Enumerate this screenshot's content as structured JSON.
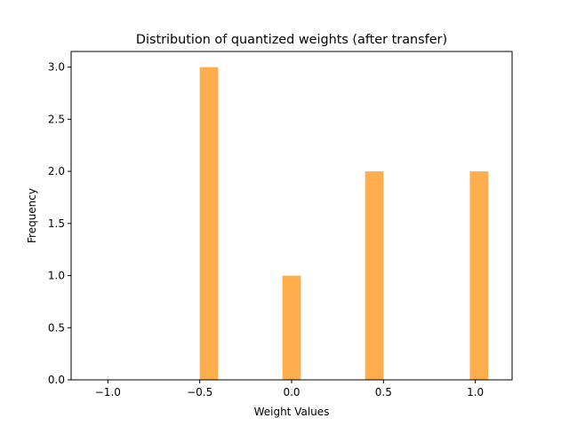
{
  "chart_data": {
    "type": "bar",
    "title": "Distribution of quantized weights (after transfer)",
    "xlabel": "Weight Values",
    "ylabel": "Frequency",
    "xlim": [
      -1.2,
      1.2
    ],
    "ylim": [
      0,
      3.15
    ],
    "bar_width": 0.1,
    "bar_color": "#FFAD4D",
    "bars": [
      {
        "x": -0.45,
        "value": 3
      },
      {
        "x": 0.0,
        "value": 1
      },
      {
        "x": 0.45,
        "value": 2
      },
      {
        "x": 1.02,
        "value": 2
      }
    ],
    "x_ticks": [
      {
        "value": -1.0,
        "label": "−1.0"
      },
      {
        "value": -0.5,
        "label": "−0.5"
      },
      {
        "value": 0.0,
        "label": "0.0"
      },
      {
        "value": 0.5,
        "label": "0.5"
      },
      {
        "value": 1.0,
        "label": "1.0"
      }
    ],
    "y_ticks": [
      {
        "value": 0.0,
        "label": "0.0"
      },
      {
        "value": 0.5,
        "label": "0.5"
      },
      {
        "value": 1.0,
        "label": "1.0"
      },
      {
        "value": 1.5,
        "label": "1.5"
      },
      {
        "value": 2.0,
        "label": "2.0"
      },
      {
        "value": 2.5,
        "label": "2.5"
      },
      {
        "value": 3.0,
        "label": "3.0"
      }
    ],
    "grid": false,
    "legend": "none"
  }
}
